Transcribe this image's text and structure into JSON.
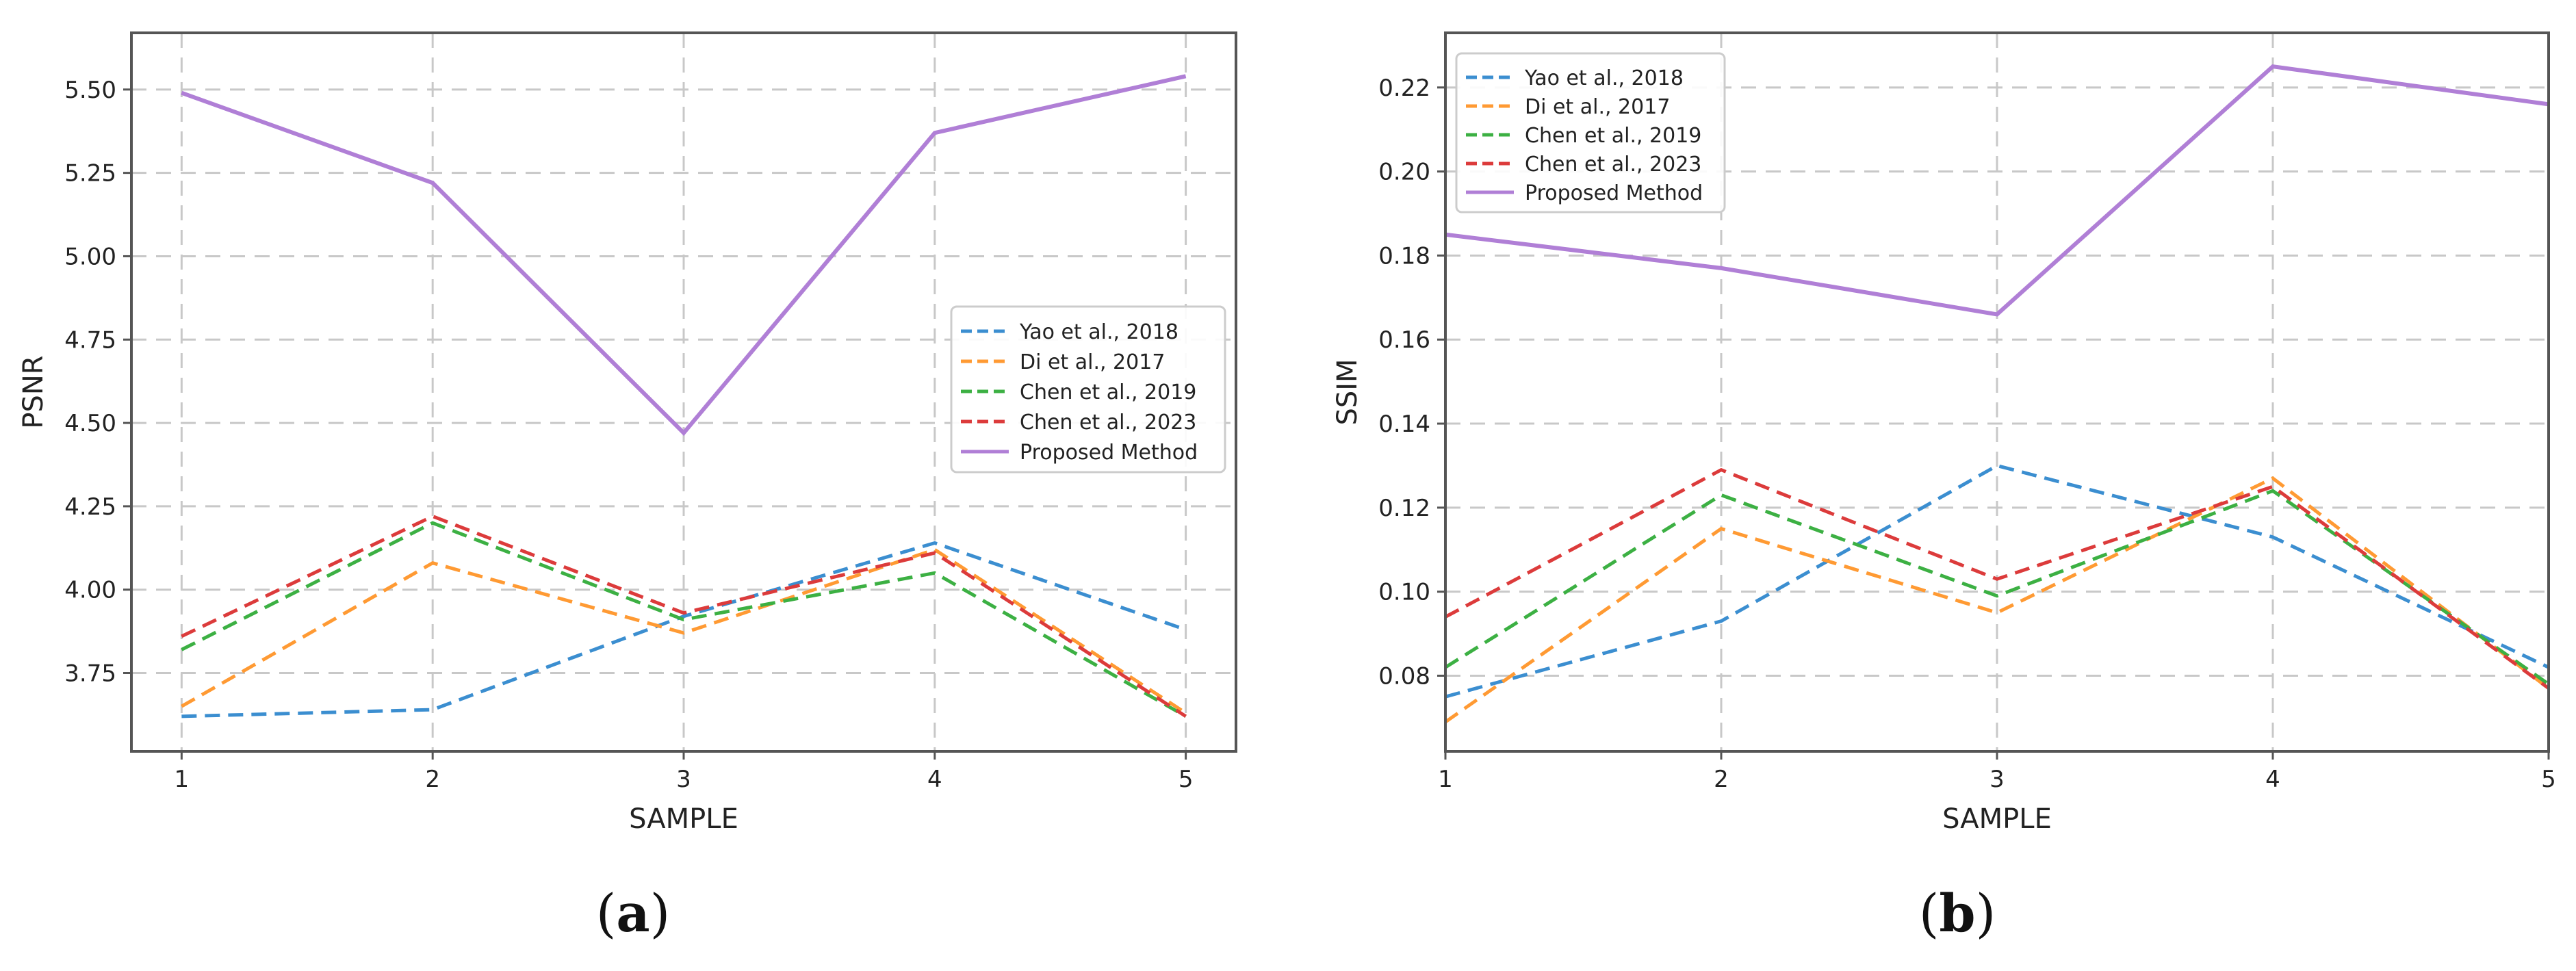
{
  "colors": {
    "yao": "#3b8ed0",
    "di": "#ff9a33",
    "chen2019": "#3cb043",
    "chen2023": "#dc3b3b",
    "proposed": "#b07fd6",
    "grid": "#c8c8c8",
    "axis": "#555555"
  },
  "captions": {
    "a": "a",
    "b": "b"
  },
  "chart_data": [
    {
      "id": "a",
      "type": "line",
      "xlabel": "SAMPLE",
      "ylabel": "PSNR",
      "x": [
        1,
        2,
        3,
        4,
        5
      ],
      "xlim": [
        0.8,
        5.2
      ],
      "ylim": [
        3.515,
        5.67
      ],
      "yticks": [
        3.75,
        4.0,
        4.25,
        4.5,
        4.75,
        5.0,
        5.25,
        5.5
      ],
      "ytick_labels": [
        "3.75",
        "4.00",
        "4.25",
        "4.50",
        "4.75",
        "5.00",
        "5.25",
        "5.50"
      ],
      "xtick_labels": [
        "1",
        "2",
        "3",
        "4",
        "5"
      ],
      "legend_position": "center-right",
      "series": [
        {
          "name": "Yao et al., 2018",
          "key": "yao",
          "style": "dashed",
          "values": [
            3.62,
            3.64,
            3.92,
            4.14,
            3.88
          ]
        },
        {
          "name": "Di et al., 2017",
          "key": "di",
          "style": "dashed",
          "values": [
            3.65,
            4.08,
            3.87,
            4.12,
            3.63
          ]
        },
        {
          "name": "Chen et al., 2019",
          "key": "chen2019",
          "style": "dashed",
          "values": [
            3.82,
            4.2,
            3.91,
            4.05,
            3.62
          ]
        },
        {
          "name": "Chen et al., 2023",
          "key": "chen2023",
          "style": "dashed",
          "values": [
            3.86,
            4.22,
            3.93,
            4.11,
            3.62
          ]
        },
        {
          "name": "Proposed Method",
          "key": "proposed",
          "style": "solid",
          "values": [
            5.49,
            5.22,
            4.47,
            5.37,
            5.54
          ]
        }
      ]
    },
    {
      "id": "b",
      "type": "line",
      "xlabel": "SAMPLE",
      "ylabel": "SSIM",
      "x": [
        1,
        2,
        3,
        4,
        5
      ],
      "xlim": [
        1,
        5
      ],
      "ylim": [
        0.062,
        0.233
      ],
      "yticks": [
        0.08,
        0.1,
        0.12,
        0.14,
        0.16,
        0.18,
        0.2,
        0.22
      ],
      "ytick_labels": [
        "0.08",
        "0.10",
        "0.12",
        "0.14",
        "0.16",
        "0.18",
        "0.20",
        "0.22"
      ],
      "xtick_labels": [
        "1",
        "2",
        "3",
        "4",
        "5"
      ],
      "legend_position": "top-left",
      "series": [
        {
          "name": "Yao et al., 2018",
          "key": "yao",
          "style": "dashed",
          "values": [
            0.075,
            0.093,
            0.13,
            0.113,
            0.082
          ]
        },
        {
          "name": "Di et al., 2017",
          "key": "di",
          "style": "dashed",
          "values": [
            0.069,
            0.115,
            0.095,
            0.127,
            0.077
          ]
        },
        {
          "name": "Chen et al., 2019",
          "key": "chen2019",
          "style": "dashed",
          "values": [
            0.082,
            0.123,
            0.099,
            0.124,
            0.078
          ]
        },
        {
          "name": "Chen et al., 2023",
          "key": "chen2023",
          "style": "dashed",
          "values": [
            0.094,
            0.129,
            0.103,
            0.125,
            0.077
          ]
        },
        {
          "name": "Proposed Method",
          "key": "proposed",
          "style": "solid",
          "values": [
            0.185,
            0.177,
            0.166,
            0.225,
            0.216
          ]
        }
      ]
    }
  ]
}
